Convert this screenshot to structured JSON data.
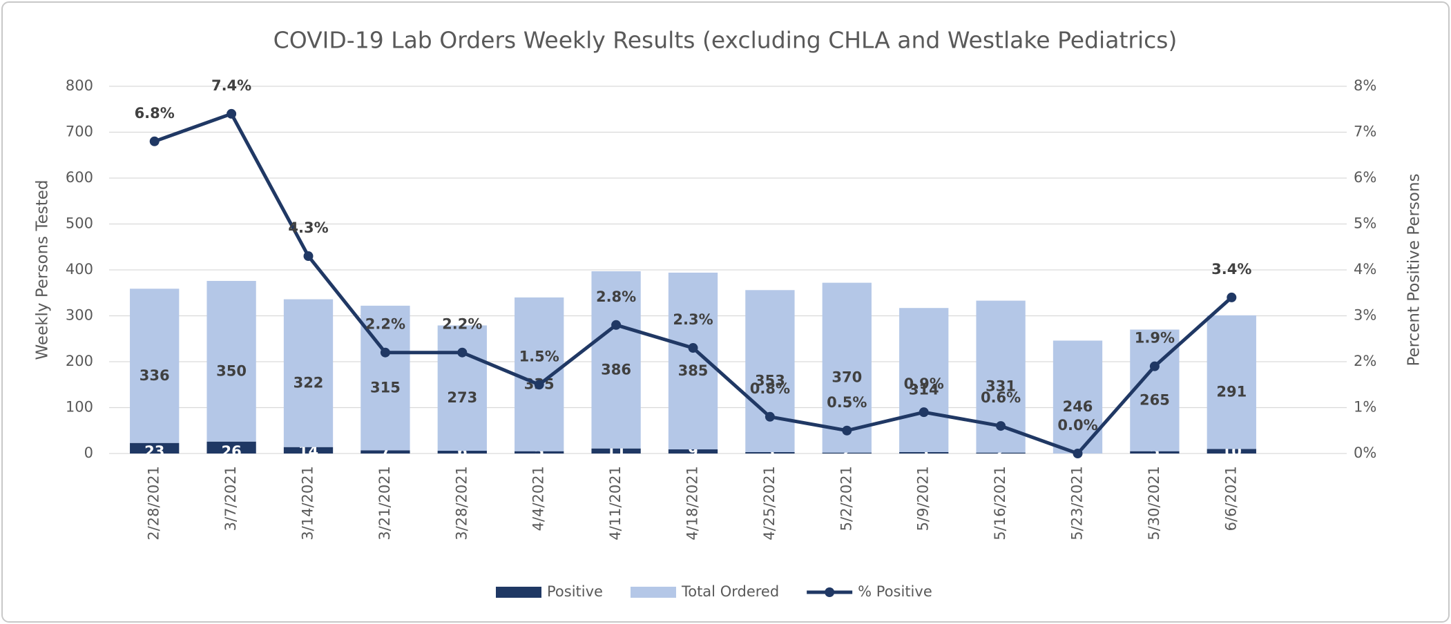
{
  "chart_data": {
    "type": "bar_line",
    "title": "COVID-19 Lab Orders Weekly Results (excluding CHLA and Westlake Pediatrics)",
    "y_label": "Weekly Persons Tested",
    "y2_label": "Percent Positive Persons",
    "categories": [
      "2/28/2021",
      "3/7/2021",
      "3/14/2021",
      "3/21/2021",
      "3/28/2021",
      "4/4/2021",
      "4/11/2021",
      "4/18/2021",
      "4/25/2021",
      "5/2/2021",
      "5/9/2021",
      "5/16/2021",
      "5/23/2021",
      "5/30/2021",
      "6/6/2021"
    ],
    "series": [
      {
        "name": "Positive",
        "color": "#1f3864",
        "kind": "bar",
        "values": [
          23,
          26,
          14,
          7,
          6,
          5,
          11,
          9,
          3,
          2,
          3,
          2,
          0,
          5,
          10
        ]
      },
      {
        "name": "Total Ordered",
        "color": "#b4c7e7",
        "kind": "bar",
        "values": [
          336,
          350,
          322,
          315,
          273,
          335,
          386,
          385,
          353,
          370,
          314,
          331,
          246,
          265,
          291
        ]
      },
      {
        "name": "% Positive",
        "color": "#203864",
        "kind": "line",
        "axis": "y2",
        "values": [
          6.8,
          7.4,
          4.3,
          2.2,
          2.2,
          1.5,
          2.8,
          2.3,
          0.8,
          0.5,
          0.9,
          0.6,
          0.0,
          1.9,
          3.4
        ],
        "value_labels": [
          "6.8%",
          "7.4%",
          "4.3%",
          "2.2%",
          "2.2%",
          "1.5%",
          "2.8%",
          "2.3%",
          "0.8%",
          "0.5%",
          "0.9%",
          "0.6%",
          "0.0%",
          "1.9%",
          "3.4%"
        ]
      }
    ],
    "ylim": [
      0,
      800
    ],
    "yticks": [
      0,
      100,
      200,
      300,
      400,
      500,
      600,
      700,
      800
    ],
    "y2lim": [
      0,
      8
    ],
    "y2ticks": [
      {
        "value": 0,
        "label": "0%"
      },
      {
        "value": 1,
        "label": "1%"
      },
      {
        "value": 2,
        "label": "2%"
      },
      {
        "value": 3,
        "label": "3%"
      },
      {
        "value": 4,
        "label": "4%"
      },
      {
        "value": 5,
        "label": "5%"
      },
      {
        "value": 6,
        "label": "6%"
      },
      {
        "value": 7,
        "label": "7%"
      },
      {
        "value": 8,
        "label": "8%"
      }
    ],
    "grid": true,
    "legend": "bottom"
  }
}
